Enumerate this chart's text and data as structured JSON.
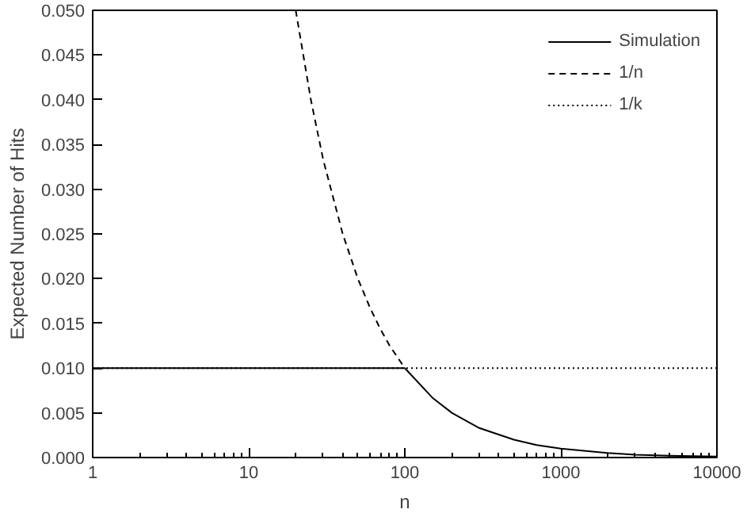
{
  "chart_data": {
    "type": "line",
    "xlabel": "n",
    "ylabel": "Expected Number of Hits",
    "log": "x",
    "xlim": [
      1,
      10000
    ],
    "xticks": [
      1,
      10,
      100,
      1000,
      10000
    ],
    "ylim": [
      0,
      0.05
    ],
    "yticks": [
      {
        "value": 0,
        "label": "0.000"
      },
      {
        "value": 0.005,
        "label": "0.005"
      },
      {
        "value": 0.01,
        "label": "0.010"
      },
      {
        "value": 0.015,
        "label": "0.015"
      },
      {
        "value": 0.02,
        "label": "0.020"
      },
      {
        "value": 0.025,
        "label": "0.025"
      },
      {
        "value": 0.03,
        "label": "0.030"
      },
      {
        "value": 0.035,
        "label": "0.035"
      },
      {
        "value": 0.04,
        "label": "0.040"
      },
      {
        "value": 0.045,
        "label": "0.045"
      },
      {
        "value": 0.05,
        "label": "0.050"
      }
    ],
    "grid": false,
    "legend": "top right",
    "marker": "none",
    "series": [
      {
        "name": "Simulation",
        "color": "#000000",
        "line_style": "solid",
        "x": [
          1,
          100,
          150,
          200,
          300,
          500,
          700,
          1000,
          2000,
          3000,
          5000,
          10000
        ],
        "values": [
          0.01,
          0.01,
          0.0067,
          0.005,
          0.0033,
          0.002,
          0.0014,
          0.001,
          0.0005,
          0.0003,
          0.0002,
          0.0001
        ]
      },
      {
        "name": "1/n",
        "color": "#000000",
        "line_style": "dashed",
        "x": [
          20,
          25,
          30,
          40,
          50,
          60,
          70,
          80,
          100
        ],
        "values": [
          0.05,
          0.04,
          0.0333,
          0.025,
          0.02,
          0.0167,
          0.0143,
          0.0125,
          0.01
        ]
      },
      {
        "name": "1/k",
        "color": "#000000",
        "line_style": "dotted",
        "x": [
          1,
          10000
        ],
        "values": [
          0.01,
          0.01
        ]
      }
    ]
  }
}
